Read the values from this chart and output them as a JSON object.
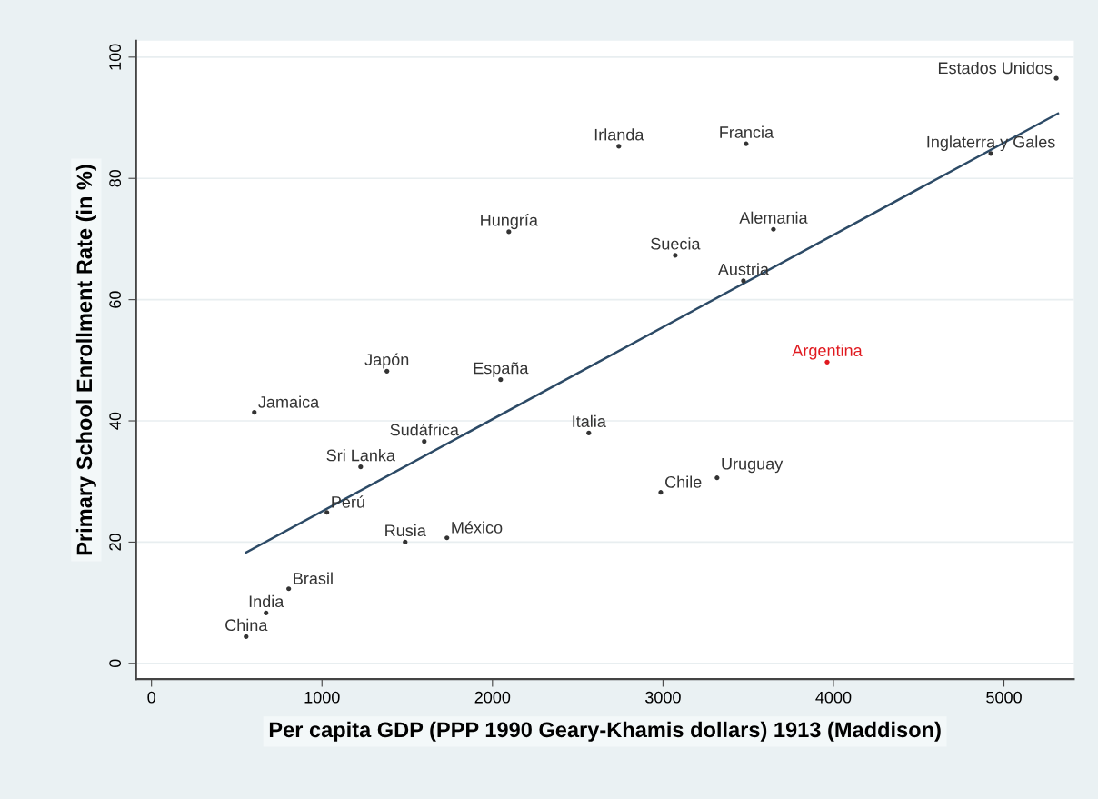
{
  "chart_data": {
    "type": "scatter",
    "xlabel": "Per capita GDP (PPP 1990 Geary-Khamis dollars) 1913 (Maddison)",
    "ylabel": "Primary School Enrollment Rate (in %)",
    "xlim": [
      -90,
      5410
    ],
    "ylim": [
      -2.6,
      102.7
    ],
    "xticks": [
      0,
      1000,
      2000,
      3000,
      4000,
      5000
    ],
    "yticks": [
      0,
      20,
      40,
      60,
      80,
      100
    ],
    "grid": "y",
    "legend": false,
    "series": [
      {
        "marker": "circle",
        "x": [
          555,
          672,
          805,
          1029,
          603,
          1227,
          1381,
          1488,
          1600,
          1733,
          2048,
          2096,
          2565,
          2741,
          2987,
          3317,
          3472,
          3072,
          3488,
          3648,
          3963,
          4923,
          5307
        ],
        "values": [
          4.4,
          8.3,
          12.3,
          24.9,
          41.4,
          32.4,
          48.2,
          20.0,
          36.6,
          20.7,
          46.8,
          71.2,
          38.0,
          85.3,
          28.2,
          30.6,
          63.1,
          67.3,
          85.7,
          71.6,
          49.7,
          84.1,
          96.5
        ],
        "colors": [
          "#333333",
          "#333333",
          "#333333",
          "#333333",
          "#333333",
          "#333333",
          "#333333",
          "#333333",
          "#333333",
          "#333333",
          "#333333",
          "#333333",
          "#333333",
          "#333333",
          "#333333",
          "#333333",
          "#333333",
          "#333333",
          "#333333",
          "#333333",
          "#e0191f",
          "#333333",
          "#333333"
        ]
      },
      {
        "type": "line",
        "marker": "none",
        "color": "#2c4a66",
        "x": [
          555,
          5317
        ],
        "values": [
          18.3,
          90.7
        ]
      }
    ],
    "annotations": [
      {
        "text": "China",
        "x": 555,
        "y": 4.4
      },
      {
        "text": "India",
        "x": 672,
        "y": 8.3
      },
      {
        "text": "Brasil",
        "x": 805,
        "y": 12.3
      },
      {
        "text": "Perú",
        "x": 1029,
        "y": 24.9
      },
      {
        "text": "Jamaica",
        "x": 603,
        "y": 41.4
      },
      {
        "text": "Sri Lanka",
        "x": 1227,
        "y": 32.4
      },
      {
        "text": "Japón",
        "x": 1381,
        "y": 48.2
      },
      {
        "text": "Rusia",
        "x": 1488,
        "y": 20.0
      },
      {
        "text": "Sudáfrica",
        "x": 1600,
        "y": 36.6
      },
      {
        "text": "México",
        "x": 1733,
        "y": 20.7
      },
      {
        "text": "España",
        "x": 2048,
        "y": 46.8
      },
      {
        "text": "Hungría",
        "x": 2096,
        "y": 71.2
      },
      {
        "text": "Italia",
        "x": 2565,
        "y": 38.0
      },
      {
        "text": "Irlanda",
        "x": 2741,
        "y": 85.3
      },
      {
        "text": "Chile",
        "x": 2987,
        "y": 28.2
      },
      {
        "text": "Uruguay",
        "x": 3317,
        "y": 30.6
      },
      {
        "text": "Austria",
        "x": 3472,
        "y": 63.1
      },
      {
        "text": "Suecia",
        "x": 3072,
        "y": 67.3
      },
      {
        "text": "Francia",
        "x": 3488,
        "y": 85.7
      },
      {
        "text": "Alemania",
        "x": 3648,
        "y": 71.6
      },
      {
        "text": "Argentina",
        "x": 3963,
        "y": 49.7
      },
      {
        "text": "Inglaterra y Gales",
        "x": 4923,
        "y": 84.1
      },
      {
        "text": "Estados Unidos",
        "x": 5307,
        "y": 96.5
      }
    ]
  }
}
